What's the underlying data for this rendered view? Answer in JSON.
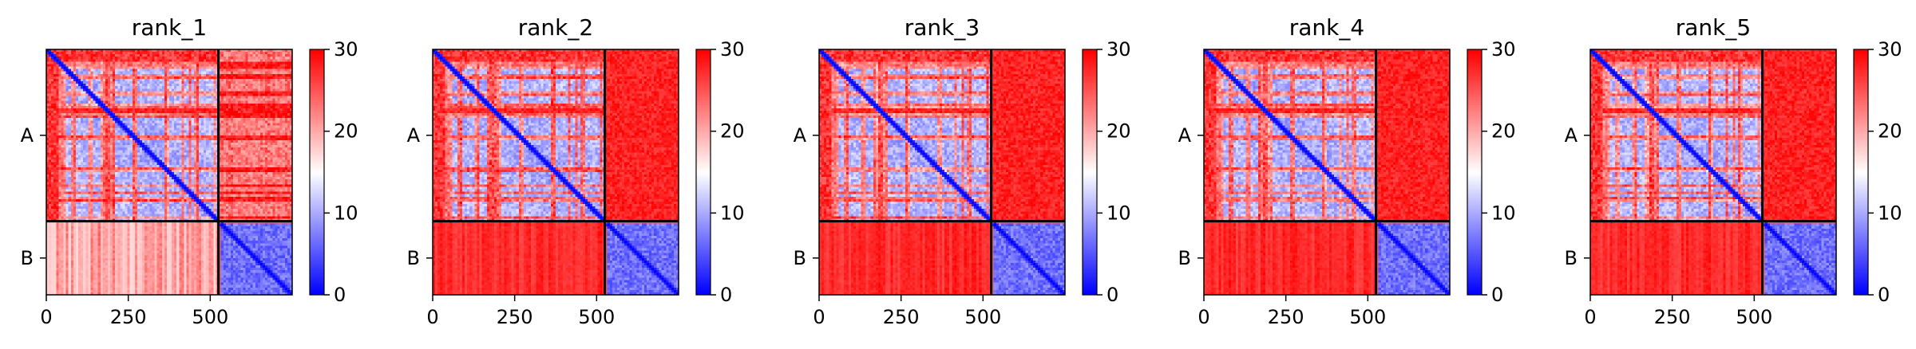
{
  "chart_data": [
    {
      "type": "heatmap",
      "title": "rank_1",
      "seed": 11,
      "off_mode": "light",
      "x_ticks": [
        0,
        250,
        500
      ],
      "xlim": [
        0,
        750
      ],
      "y_ticks": [
        "A",
        "B"
      ],
      "chain_boundary": 525,
      "colorbar": {
        "min": 0,
        "max": 30,
        "ticks": [
          0,
          10,
          20,
          30
        ],
        "colormap": "bwr"
      }
    },
    {
      "type": "heatmap",
      "title": "rank_2",
      "seed": 22,
      "off_mode": "red",
      "x_ticks": [
        0,
        250,
        500
      ],
      "xlim": [
        0,
        750
      ],
      "y_ticks": [
        "A",
        "B"
      ],
      "chain_boundary": 525,
      "colorbar": {
        "min": 0,
        "max": 30,
        "ticks": [
          0,
          10,
          20,
          30
        ],
        "colormap": "bwr"
      }
    },
    {
      "type": "heatmap",
      "title": "rank_3",
      "seed": 33,
      "off_mode": "red",
      "x_ticks": [
        0,
        250,
        500
      ],
      "xlim": [
        0,
        750
      ],
      "y_ticks": [
        "A",
        "B"
      ],
      "chain_boundary": 525,
      "colorbar": {
        "min": 0,
        "max": 30,
        "ticks": [
          0,
          10,
          20,
          30
        ],
        "colormap": "bwr"
      }
    },
    {
      "type": "heatmap",
      "title": "rank_4",
      "seed": 44,
      "off_mode": "red",
      "x_ticks": [
        0,
        250,
        500
      ],
      "xlim": [
        0,
        750
      ],
      "y_ticks": [
        "A",
        "B"
      ],
      "chain_boundary": 525,
      "colorbar": {
        "min": 0,
        "max": 30,
        "ticks": [
          0,
          10,
          20,
          30
        ],
        "colormap": "bwr"
      }
    },
    {
      "type": "heatmap",
      "title": "rank_5",
      "seed": 55,
      "off_mode": "red",
      "x_ticks": [
        0,
        250,
        500
      ],
      "xlim": [
        0,
        750
      ],
      "y_ticks": [
        "A",
        "B"
      ],
      "chain_boundary": 525,
      "colorbar": {
        "min": 0,
        "max": 30,
        "ticks": [
          0,
          10,
          20,
          30
        ],
        "colormap": "bwr"
      }
    }
  ]
}
